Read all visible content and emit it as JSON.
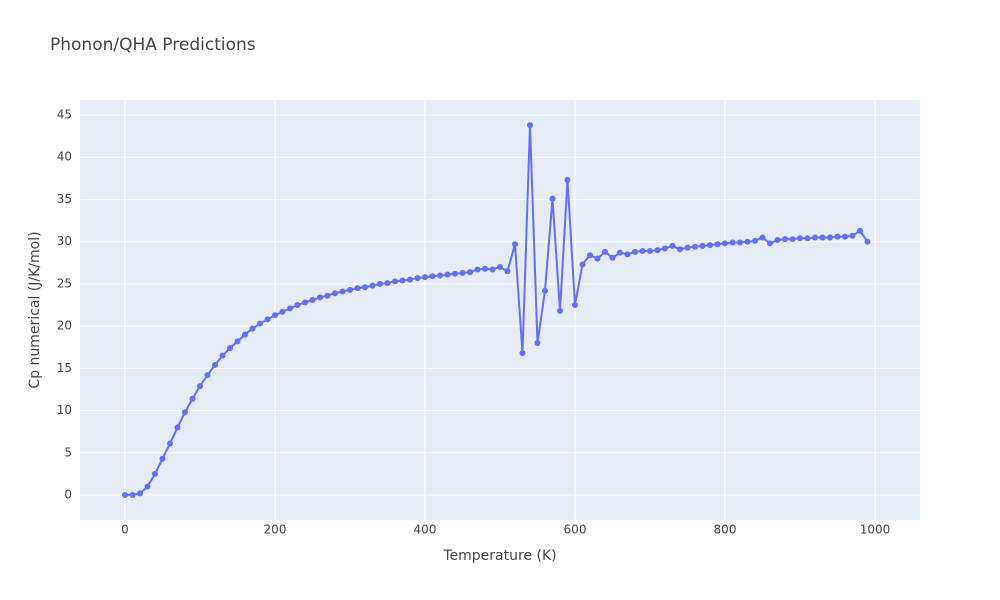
{
  "chart_data": {
    "type": "line",
    "title": "Phonon/QHA Predictions",
    "x_label": "Temperature (K)",
    "y_label": "Cp numerical (J/K/mol)",
    "x": [
      0,
      10,
      20,
      30,
      40,
      50,
      60,
      70,
      80,
      90,
      100,
      110,
      120,
      130,
      140,
      150,
      160,
      170,
      180,
      190,
      200,
      210,
      220,
      230,
      240,
      250,
      260,
      270,
      280,
      290,
      300,
      310,
      320,
      330,
      340,
      350,
      360,
      370,
      380,
      390,
      400,
      410,
      420,
      430,
      440,
      450,
      460,
      470,
      480,
      490,
      500,
      510,
      520,
      530,
      540,
      550,
      560,
      570,
      580,
      590,
      600,
      610,
      620,
      630,
      640,
      650,
      660,
      670,
      680,
      690,
      700,
      710,
      720,
      730,
      740,
      750,
      760,
      770,
      780,
      790,
      800,
      810,
      820,
      830,
      840,
      850,
      860,
      870,
      880,
      890,
      900,
      910,
      920,
      930,
      940,
      950,
      960,
      970,
      980,
      990
    ],
    "series": [
      {
        "name": "Cp numerical",
        "color": "#636efa",
        "values": [
          0,
          0,
          0.2,
          1.0,
          2.5,
          4.3,
          6.1,
          8.0,
          9.8,
          11.4,
          12.9,
          14.2,
          15.4,
          16.5,
          17.4,
          18.2,
          19.0,
          19.7,
          20.3,
          20.8,
          21.3,
          21.7,
          22.1,
          22.5,
          22.8,
          23.1,
          23.4,
          23.6,
          23.9,
          24.1,
          24.3,
          24.5,
          24.6,
          24.8,
          25.0,
          25.1,
          25.3,
          25.4,
          25.5,
          25.7,
          25.8,
          25.9,
          26.0,
          26.1,
          26.2,
          26.3,
          26.4,
          26.7,
          26.8,
          26.7,
          27.0,
          26.5,
          29.7,
          16.8,
          43.8,
          18.0,
          24.2,
          35.1,
          21.8,
          37.3,
          22.5,
          27.3,
          28.4,
          28.0,
          28.8,
          28.1,
          28.7,
          28.5,
          28.8,
          28.9,
          28.9,
          29.0,
          29.2,
          29.5,
          29.1,
          29.3,
          29.4,
          29.5,
          29.6,
          29.7,
          29.8,
          29.9,
          29.9,
          30.0,
          30.1,
          30.5,
          29.8,
          30.2,
          30.3,
          30.3,
          30.4,
          30.4,
          30.5,
          30.5,
          30.5,
          30.6,
          30.6,
          30.7,
          31.3,
          30.0
        ]
      }
    ],
    "xlim": [
      -60,
      1060
    ],
    "ylim": [
      -2.96,
      46.78
    ],
    "xticks": [
      0,
      200,
      400,
      600,
      800,
      1000
    ],
    "yticks": [
      0,
      5,
      10,
      15,
      20,
      25,
      30,
      35,
      40,
      45
    ],
    "grid": true
  }
}
